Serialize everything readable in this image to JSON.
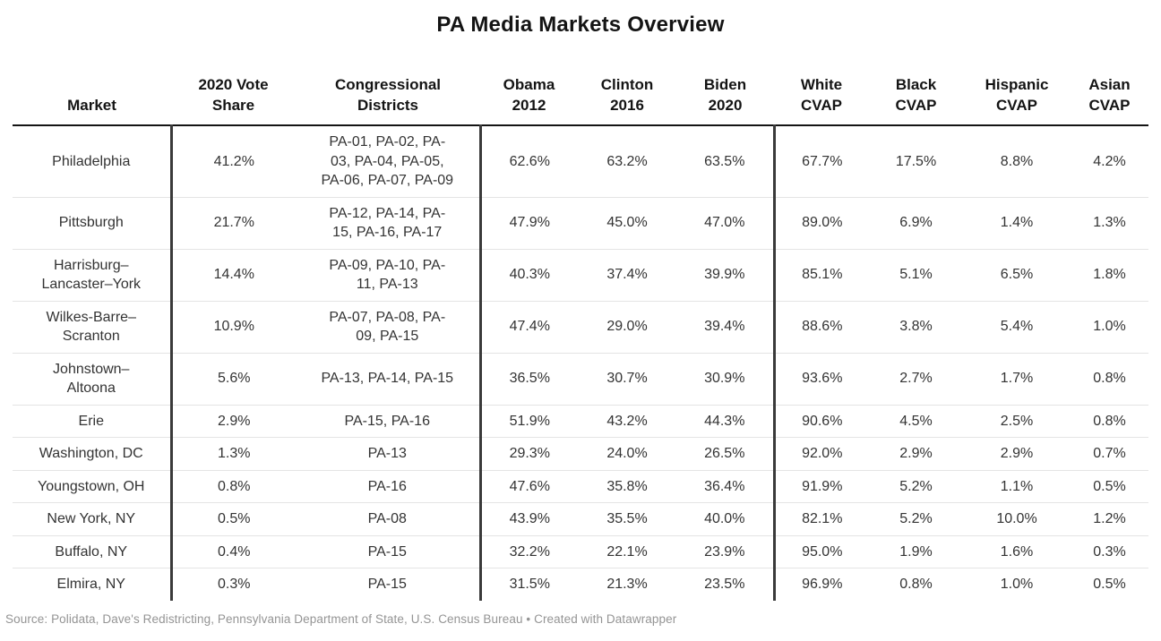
{
  "title": "PA Media Markets Overview",
  "chart_data": {
    "type": "table",
    "title": "PA Media Markets Overview",
    "columns": [
      "Market",
      "2020 Vote Share",
      "Congressional Districts",
      "Obama 2012",
      "Clinton 2016",
      "Biden 2020",
      "White CVAP",
      "Black CVAP",
      "Hispanic CVAP",
      "Asian CVAP"
    ],
    "rows": [
      [
        "Philadelphia",
        "41.2%",
        "PA-01, PA-02, PA-03, PA-04, PA-05, PA-06, PA-07, PA-09",
        "62.6%",
        "63.2%",
        "63.5%",
        "67.7%",
        "17.5%",
        "8.8%",
        "4.2%"
      ],
      [
        "Pittsburgh",
        "21.7%",
        "PA-12, PA-14, PA-15, PA-16, PA-17",
        "47.9%",
        "45.0%",
        "47.0%",
        "89.0%",
        "6.9%",
        "1.4%",
        "1.3%"
      ],
      [
        "Harrisburg–Lancaster–York",
        "14.4%",
        "PA-09, PA-10, PA-11, PA-13",
        "40.3%",
        "37.4%",
        "39.9%",
        "85.1%",
        "5.1%",
        "6.5%",
        "1.8%"
      ],
      [
        "Wilkes-Barre–Scranton",
        "10.9%",
        "PA-07, PA-08, PA-09, PA-15",
        "47.4%",
        "29.0%",
        "39.4%",
        "88.6%",
        "3.8%",
        "5.4%",
        "1.0%"
      ],
      [
        "Johnstown–Altoona",
        "5.6%",
        "PA-13, PA-14, PA-15",
        "36.5%",
        "30.7%",
        "30.9%",
        "93.6%",
        "2.7%",
        "1.7%",
        "0.8%"
      ],
      [
        "Erie",
        "2.9%",
        "PA-15, PA-16",
        "51.9%",
        "43.2%",
        "44.3%",
        "90.6%",
        "4.5%",
        "2.5%",
        "0.8%"
      ],
      [
        "Washington, DC",
        "1.3%",
        "PA-13",
        "29.3%",
        "24.0%",
        "26.5%",
        "92.0%",
        "2.9%",
        "2.9%",
        "0.7%"
      ],
      [
        "Youngstown, OH",
        "0.8%",
        "PA-16",
        "47.6%",
        "35.8%",
        "36.4%",
        "91.9%",
        "5.2%",
        "1.1%",
        "0.5%"
      ],
      [
        "New York, NY",
        "0.5%",
        "PA-08",
        "43.9%",
        "35.5%",
        "40.0%",
        "82.1%",
        "5.2%",
        "10.0%",
        "1.2%"
      ],
      [
        "Buffalo, NY",
        "0.4%",
        "PA-15",
        "32.2%",
        "22.1%",
        "23.9%",
        "95.0%",
        "1.9%",
        "1.6%",
        "0.3%"
      ],
      [
        "Elmira, NY",
        "0.3%",
        "PA-15",
        "31.5%",
        "21.3%",
        "23.5%",
        "96.9%",
        "0.8%",
        "1.0%",
        "0.5%"
      ]
    ]
  },
  "table_display": {
    "columns": [
      "Market",
      "2020 Vote\nShare",
      "Congressional\nDistricts",
      "Obama\n2012",
      "Clinton\n2016",
      "Biden\n2020",
      "White\nCVAP",
      "Black\nCVAP",
      "Hispanic\nCVAP",
      "Asian\nCVAP"
    ],
    "rows": [
      [
        "Philadelphia",
        "41.2%",
        "PA-01, PA-02, PA-\n03, PA-04, PA-05,\nPA-06, PA-07, PA-09",
        "62.6%",
        "63.2%",
        "63.5%",
        "67.7%",
        "17.5%",
        "8.8%",
        "4.2%"
      ],
      [
        "Pittsburgh",
        "21.7%",
        "PA-12, PA-14, PA-\n15, PA-16, PA-17",
        "47.9%",
        "45.0%",
        "47.0%",
        "89.0%",
        "6.9%",
        "1.4%",
        "1.3%"
      ],
      [
        "Harrisburg–\nLancaster–York",
        "14.4%",
        "PA-09, PA-10, PA-\n11, PA-13",
        "40.3%",
        "37.4%",
        "39.9%",
        "85.1%",
        "5.1%",
        "6.5%",
        "1.8%"
      ],
      [
        "Wilkes-Barre–\nScranton",
        "10.9%",
        "PA-07, PA-08, PA-\n09, PA-15",
        "47.4%",
        "29.0%",
        "39.4%",
        "88.6%",
        "3.8%",
        "5.4%",
        "1.0%"
      ],
      [
        "Johnstown–\nAltoona",
        "5.6%",
        "PA-13, PA-14, PA-15",
        "36.5%",
        "30.7%",
        "30.9%",
        "93.6%",
        "2.7%",
        "1.7%",
        "0.8%"
      ],
      [
        "Erie",
        "2.9%",
        "PA-15, PA-16",
        "51.9%",
        "43.2%",
        "44.3%",
        "90.6%",
        "4.5%",
        "2.5%",
        "0.8%"
      ],
      [
        "Washington, DC",
        "1.3%",
        "PA-13",
        "29.3%",
        "24.0%",
        "26.5%",
        "92.0%",
        "2.9%",
        "2.9%",
        "0.7%"
      ],
      [
        "Youngstown, OH",
        "0.8%",
        "PA-16",
        "47.6%",
        "35.8%",
        "36.4%",
        "91.9%",
        "5.2%",
        "1.1%",
        "0.5%"
      ],
      [
        "New York, NY",
        "0.5%",
        "PA-08",
        "43.9%",
        "35.5%",
        "40.0%",
        "82.1%",
        "5.2%",
        "10.0%",
        "1.2%"
      ],
      [
        "Buffalo, NY",
        "0.4%",
        "PA-15",
        "32.2%",
        "22.1%",
        "23.9%",
        "95.0%",
        "1.9%",
        "1.6%",
        "0.3%"
      ],
      [
        "Elmira, NY",
        "0.3%",
        "PA-15",
        "31.5%",
        "21.3%",
        "23.5%",
        "96.9%",
        "0.8%",
        "1.0%",
        "0.5%"
      ]
    ]
  },
  "footer": {
    "source_line": "Source: Polidata, Dave's Redistricting, Pennsylvania Department of State, U.S. Census Bureau • Created with Datawrapper"
  },
  "colors": {
    "title_text": "#141414",
    "body_text": "#333333",
    "thick_divider": "#3a3a3a",
    "header_underline": "#141414",
    "row_separator": "#e4e4e4",
    "footer_text": "#949494"
  }
}
